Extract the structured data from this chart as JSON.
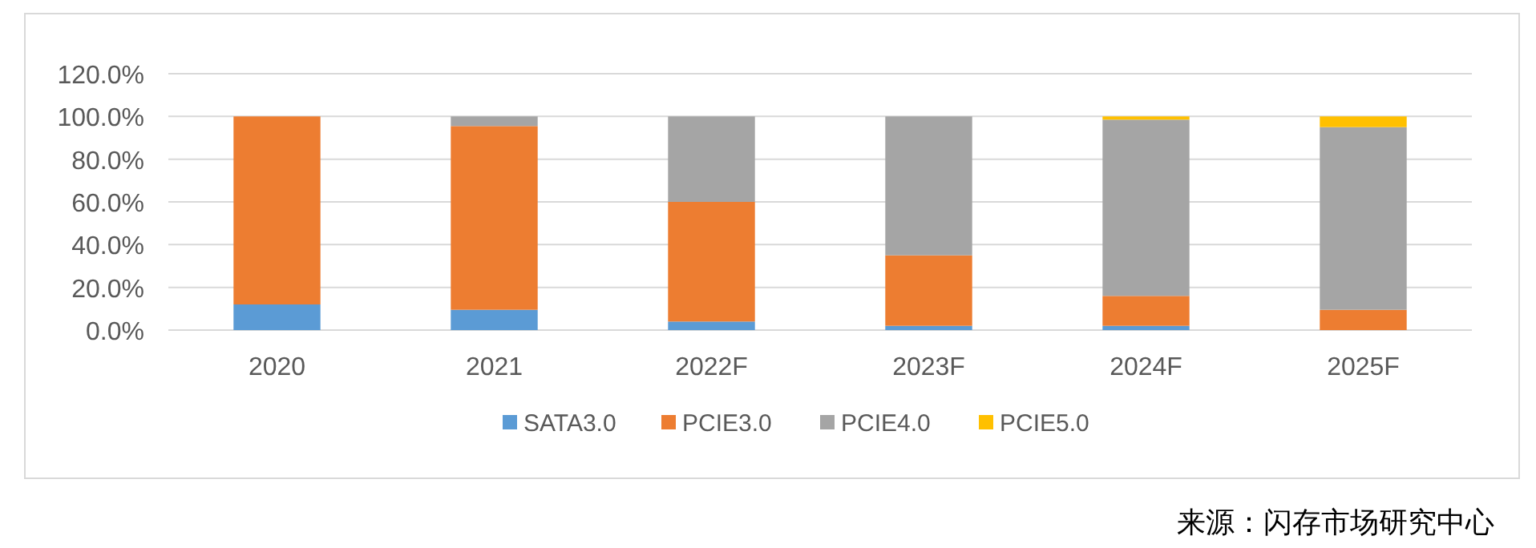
{
  "chart_data": {
    "type": "bar",
    "stacked": true,
    "categories": [
      "2020",
      "2021",
      "2022F",
      "2023F",
      "2024F",
      "2025F"
    ],
    "series": [
      {
        "name": "SATA3.0",
        "color": "#5b9bd5",
        "values": [
          12,
          9.5,
          4,
          2,
          2,
          0
        ]
      },
      {
        "name": "PCIE3.0",
        "color": "#ed7d31",
        "values": [
          88,
          86,
          56,
          33,
          14,
          9.5
        ]
      },
      {
        "name": "PCIE4.0",
        "color": "#a5a5a5",
        "values": [
          0,
          4.5,
          40,
          65,
          82.5,
          85.5
        ]
      },
      {
        "name": "PCIE5.0",
        "color": "#ffc000",
        "values": [
          0,
          0,
          0,
          0,
          1.5,
          5
        ]
      }
    ],
    "ylim": [
      0,
      120
    ],
    "yticks": [
      {
        "value": 0,
        "label": "0.0%"
      },
      {
        "value": 20,
        "label": "20.0%"
      },
      {
        "value": 40,
        "label": "40.0%"
      },
      {
        "value": 60,
        "label": "60.0%"
      },
      {
        "value": 80,
        "label": "80.0%"
      },
      {
        "value": 100,
        "label": "100.0%"
      },
      {
        "value": 120,
        "label": "120.0%"
      }
    ],
    "grid": "y",
    "legend": "bottom",
    "annotations": [
      "来源：闪存市场研究中心"
    ]
  }
}
